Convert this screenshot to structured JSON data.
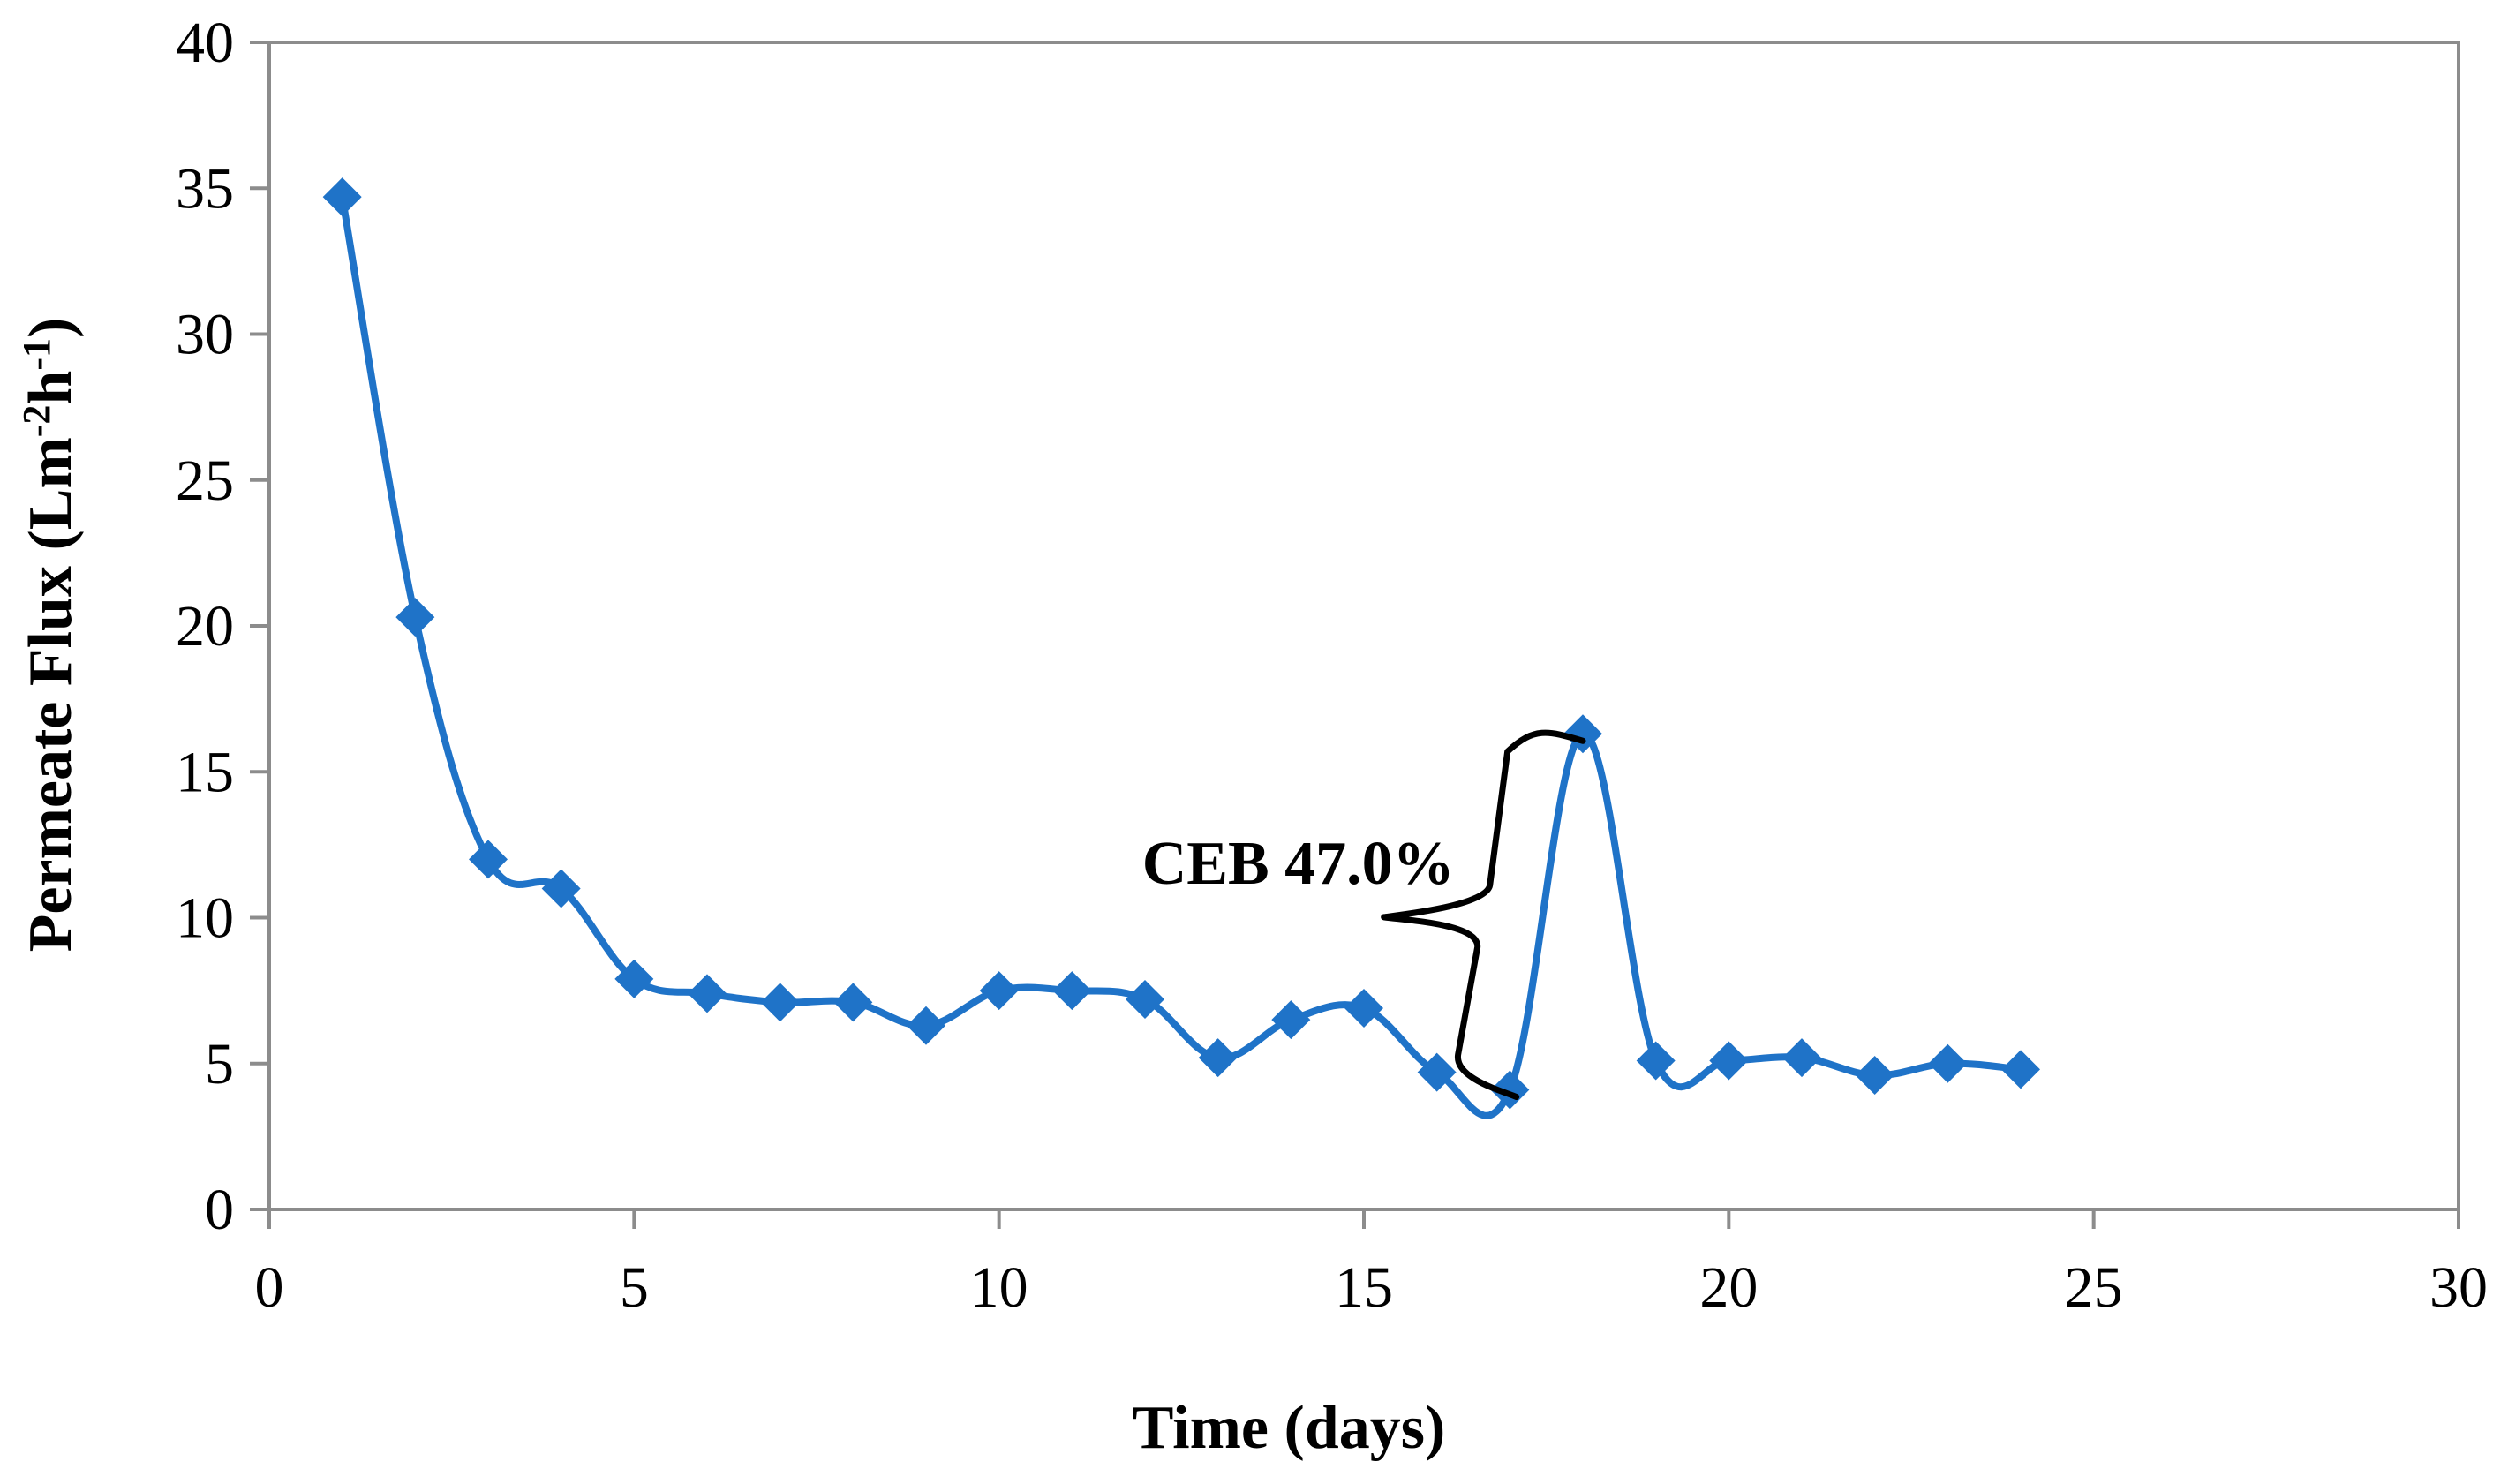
{
  "chart_data": {
    "type": "line",
    "title": "",
    "xlabel": "Time (days)",
    "ylabel_main": "Permeate Flux (Lm",
    "ylabel_sup1": "-2",
    "ylabel_mid": "h",
    "ylabel_sup2": "-1",
    "ylabel_end": ")",
    "xlim": [
      0,
      30
    ],
    "ylim": [
      0,
      40
    ],
    "xticks": [
      0,
      5,
      10,
      15,
      20,
      25,
      30
    ],
    "yticks": [
      0,
      5,
      10,
      15,
      20,
      25,
      30,
      35,
      40
    ],
    "grid": false,
    "legend": "none",
    "series": [
      {
        "name": "Permeate Flux",
        "color": "#1f73c8",
        "marker": "diamond",
        "smooth": true,
        "x": [
          1,
          2,
          3,
          4,
          5,
          6,
          7,
          8,
          9,
          10,
          11,
          12,
          13,
          14,
          15,
          16,
          17,
          18,
          19,
          20,
          21,
          22,
          23,
          24
        ],
        "y": [
          34.7,
          20.3,
          12.0,
          11.0,
          7.9,
          7.4,
          7.1,
          7.1,
          6.3,
          7.5,
          7.5,
          7.2,
          5.2,
          6.5,
          6.9,
          4.7,
          4.1,
          16.3,
          5.1,
          5.1,
          5.2,
          4.6,
          5.0,
          4.8
        ]
      }
    ],
    "annotation": {
      "text": "CEB 47.0%",
      "bracket_x_range": [
        16,
        18
      ],
      "bracket_y_range": [
        4.1,
        16.3
      ]
    }
  }
}
